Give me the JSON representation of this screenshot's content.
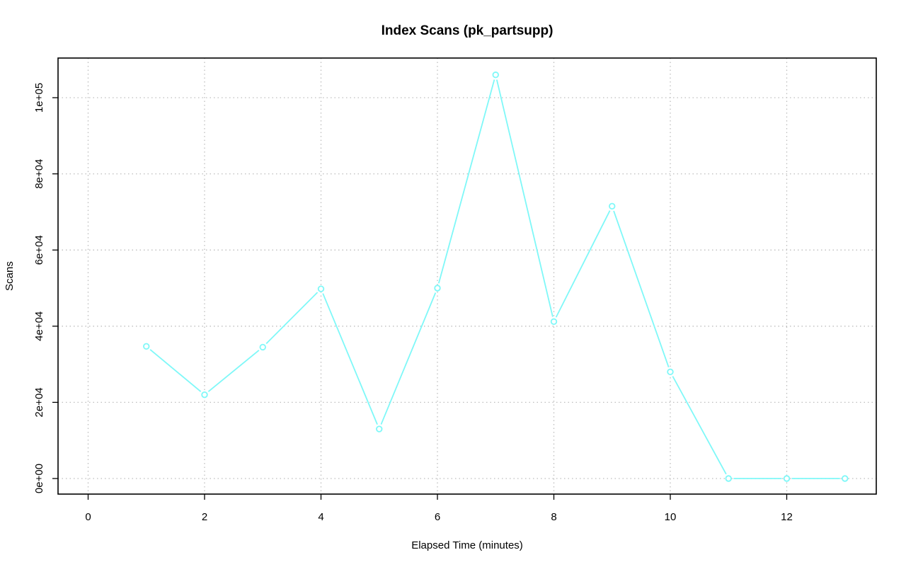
{
  "chart_data": {
    "type": "line",
    "title": "Index Scans (pk_partsupp)",
    "xlabel": "Elapsed Time (minutes)",
    "ylabel": "Scans",
    "xlim": [
      0,
      13
    ],
    "ylim": [
      0,
      106000
    ],
    "x_ticks": [
      0,
      2,
      4,
      6,
      8,
      10,
      12
    ],
    "x_tick_labels": [
      "0",
      "2",
      "4",
      "6",
      "8",
      "10",
      "12"
    ],
    "y_ticks": [
      0,
      20000,
      40000,
      60000,
      80000,
      100000
    ],
    "y_tick_labels": [
      "0e+00",
      "2e+04",
      "4e+04",
      "6e+04",
      "8e+04",
      "1e+05"
    ],
    "grid": true,
    "series_color": "#7ff8f8",
    "x": [
      1,
      2,
      3,
      4,
      5,
      6,
      7,
      8,
      9,
      10,
      11,
      12,
      13
    ],
    "values": [
      34700,
      22000,
      34500,
      49800,
      13000,
      50000,
      106000,
      41200,
      71500,
      28000,
      0,
      0,
      0
    ]
  }
}
